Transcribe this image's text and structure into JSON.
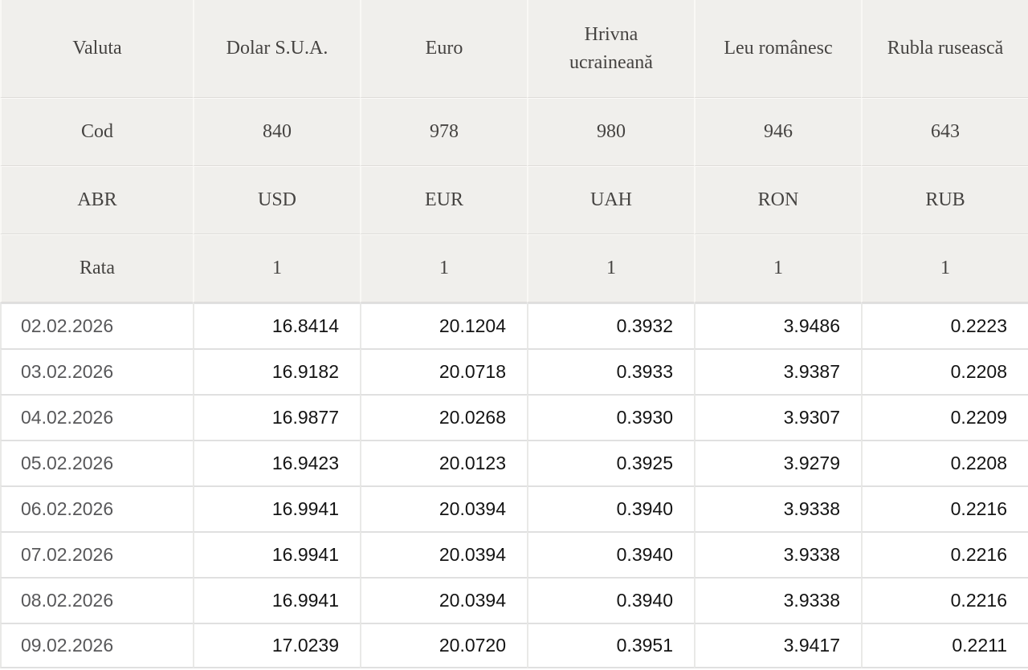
{
  "table": {
    "header_rows": [
      {
        "key": "valuta",
        "label": "Valuta",
        "values": [
          "Dolar S.U.A.",
          "Euro",
          "Hrivna ucraineană",
          "Leu românesc",
          "Rubla rusească"
        ]
      },
      {
        "key": "cod",
        "label": "Cod",
        "values": [
          "840",
          "978",
          "980",
          "946",
          "643"
        ]
      },
      {
        "key": "abr",
        "label": "ABR",
        "values": [
          "USD",
          "EUR",
          "UAH",
          "RON",
          "RUB"
        ]
      },
      {
        "key": "rata",
        "label": "Rata",
        "values": [
          "1",
          "1",
          "1",
          "1",
          "1"
        ]
      }
    ],
    "rows": [
      {
        "date": "02.02.2026",
        "values": [
          "16.8414",
          "20.1204",
          "0.3932",
          "3.9486",
          "0.2223"
        ]
      },
      {
        "date": "03.02.2026",
        "values": [
          "16.9182",
          "20.0718",
          "0.3933",
          "3.9387",
          "0.2208"
        ]
      },
      {
        "date": "04.02.2026",
        "values": [
          "16.9877",
          "20.0268",
          "0.3930",
          "3.9307",
          "0.2209"
        ]
      },
      {
        "date": "05.02.2026",
        "values": [
          "16.9423",
          "20.0123",
          "0.3925",
          "3.9279",
          "0.2208"
        ]
      },
      {
        "date": "06.02.2026",
        "values": [
          "16.9941",
          "20.0394",
          "0.3940",
          "3.9338",
          "0.2216"
        ]
      },
      {
        "date": "07.02.2026",
        "values": [
          "16.9941",
          "20.0394",
          "0.3940",
          "3.9338",
          "0.2216"
        ]
      },
      {
        "date": "08.02.2026",
        "values": [
          "16.9941",
          "20.0394",
          "0.3940",
          "3.9338",
          "0.2216"
        ]
      },
      {
        "date": "09.02.2026",
        "values": [
          "17.0239",
          "20.0720",
          "0.3951",
          "3.9417",
          "0.2211"
        ]
      }
    ]
  },
  "chart_data": {
    "type": "table",
    "title": "Currency exchange rates",
    "columns": [
      "Valuta",
      "Dolar S.U.A.",
      "Euro",
      "Hrivna ucraineană",
      "Leu românesc",
      "Rubla rusească"
    ],
    "codes": [
      840,
      978,
      980,
      946,
      643
    ],
    "abbreviations": [
      "USD",
      "EUR",
      "UAH",
      "RON",
      "RUB"
    ],
    "rate_base": [
      1,
      1,
      1,
      1,
      1
    ],
    "dates": [
      "02.02.2026",
      "03.02.2026",
      "04.02.2026",
      "05.02.2026",
      "06.02.2026",
      "07.02.2026",
      "08.02.2026",
      "09.02.2026"
    ],
    "series": [
      {
        "name": "USD",
        "values": [
          16.8414,
          16.9182,
          16.9877,
          16.9423,
          16.9941,
          16.9941,
          16.9941,
          17.0239
        ]
      },
      {
        "name": "EUR",
        "values": [
          20.1204,
          20.0718,
          20.0268,
          20.0123,
          20.0394,
          20.0394,
          20.0394,
          20.072
        ]
      },
      {
        "name": "UAH",
        "values": [
          0.3932,
          0.3933,
          0.393,
          0.3925,
          0.394,
          0.394,
          0.394,
          0.3951
        ]
      },
      {
        "name": "RON",
        "values": [
          3.9486,
          3.9387,
          3.9307,
          3.9279,
          3.9338,
          3.9338,
          3.9338,
          3.9417
        ]
      },
      {
        "name": "RUB",
        "values": [
          0.2223,
          0.2208,
          0.2209,
          0.2208,
          0.2216,
          0.2216,
          0.2216,
          0.2211
        ]
      }
    ]
  },
  "colors": {
    "header_bg": "#f0efec",
    "header_text": "#454341",
    "header_v_border": "#f9f8f5",
    "header_line_dark": "#dedcd9",
    "header_line_light": "#fbfaf8",
    "body_h_border": "#e0e0e0",
    "body_v_border": "#e9e9e7",
    "date_text": "#58585a",
    "value_text": "#141414",
    "page_bg": "#ffffff"
  }
}
